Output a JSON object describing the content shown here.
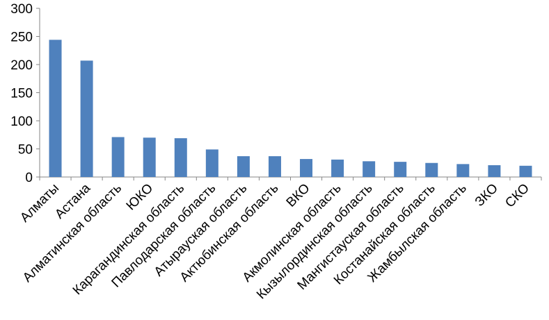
{
  "chart_data": {
    "type": "bar",
    "categories": [
      "Алматы",
      "Астана",
      "Алматинская область",
      "ЮКО",
      "Карагандинская область",
      "Павлодарская область",
      "Атырауская область",
      "Актюбинская область",
      "ВКО",
      "Акмолинская область",
      "Кызылординская область",
      "Мангистауская область",
      "Костанайская область",
      "Жамбылская область",
      "ЗКО",
      "СКО"
    ],
    "values": [
      244,
      207,
      71,
      70,
      69,
      49,
      37,
      37,
      32,
      31,
      28,
      27,
      25,
      23,
      21,
      20
    ],
    "ylim": [
      0,
      300
    ],
    "yticks": [
      "0",
      "50",
      "100",
      "150",
      "200",
      "250",
      "300"
    ],
    "grid": false,
    "legend": "none",
    "bar_color": "#4F81BD",
    "axis_color": "#868686"
  }
}
